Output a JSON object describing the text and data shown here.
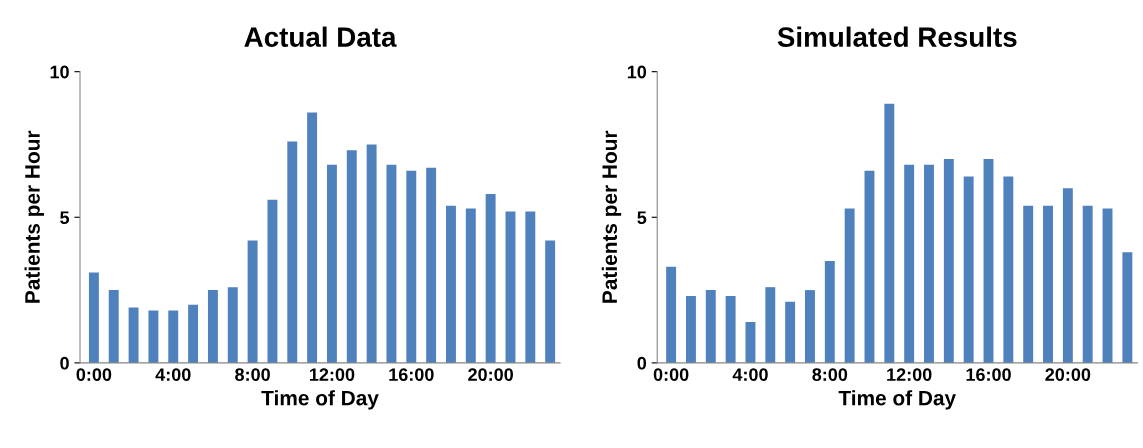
{
  "chart_data": [
    {
      "type": "bar",
      "title": "Actual Data",
      "xlabel": "Time of Day",
      "ylabel": "Patients per Hour",
      "categories": [
        "0:00",
        null,
        null,
        null,
        "4:00",
        null,
        null,
        null,
        "8:00",
        null,
        null,
        null,
        "12:00",
        null,
        null,
        null,
        "16:00",
        null,
        null,
        null,
        "20:00",
        null,
        null,
        null
      ],
      "values": [
        3.1,
        2.5,
        1.9,
        1.8,
        1.8,
        2.0,
        2.5,
        2.6,
        4.2,
        5.6,
        7.6,
        8.6,
        6.8,
        7.3,
        7.5,
        6.8,
        6.6,
        6.7,
        5.4,
        5.3,
        5.8,
        5.2,
        5.2,
        4.2
      ],
      "color": "#4f81bd",
      "ylim": [
        0,
        10
      ],
      "yticks": [
        0,
        5,
        10
      ],
      "grid": false,
      "legend": false
    },
    {
      "type": "bar",
      "title": "Simulated Results",
      "xlabel": "Time of Day",
      "ylabel": "Patients per Hour",
      "categories": [
        "0:00",
        null,
        null,
        null,
        "4:00",
        null,
        null,
        null,
        "8:00",
        null,
        null,
        null,
        "12:00",
        null,
        null,
        null,
        "16:00",
        null,
        null,
        null,
        "20:00",
        null,
        null,
        null
      ],
      "values": [
        3.3,
        2.3,
        2.5,
        2.3,
        1.4,
        2.6,
        2.1,
        2.5,
        3.5,
        5.3,
        6.6,
        8.9,
        6.8,
        6.8,
        7.0,
        6.4,
        7.0,
        6.4,
        5.4,
        5.4,
        6.0,
        5.4,
        5.3,
        3.8
      ],
      "color": "#4f81bd",
      "ylim": [
        0,
        10
      ],
      "yticks": [
        0,
        5,
        10
      ],
      "grid": false,
      "legend": false
    }
  ]
}
